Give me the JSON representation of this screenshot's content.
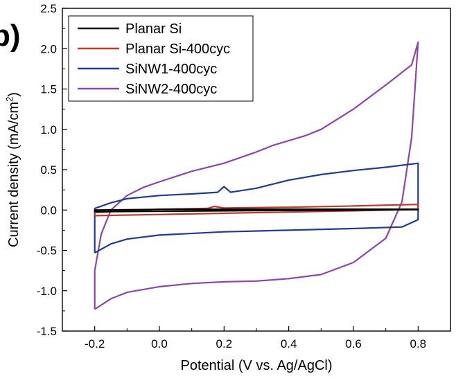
{
  "chart_data": {
    "type": "line",
    "panel_label": "b)",
    "xlabel": "Potential (V vs. Ag/AgCl)",
    "ylabel_main": "Current density (mA/cm",
    "ylabel_sup": "2",
    "ylabel_close": ")",
    "xlim": [
      -0.3,
      0.9
    ],
    "ylim": [
      -1.5,
      2.5
    ],
    "xticks": [
      -0.2,
      0.0,
      0.2,
      0.4,
      0.6,
      0.8
    ],
    "xtick_labels": [
      "-0.2",
      "0.0",
      "0.2",
      "0.4",
      "0.6",
      "0.8"
    ],
    "yticks": [
      -1.5,
      -1.0,
      -0.5,
      0.0,
      0.5,
      1.0,
      1.5,
      2.0,
      2.5
    ],
    "ytick_labels": [
      "-1.5",
      "-1.0",
      "-0.5",
      "0.0",
      "0.5",
      "1.0",
      "1.5",
      "2.0",
      "2.5"
    ],
    "legend_position": "top-left",
    "grid": false,
    "series": [
      {
        "name": "Planar Si",
        "color": "#000000",
        "points": [
          [
            -0.2,
            -0.02
          ],
          [
            0.0,
            -0.015
          ],
          [
            0.2,
            -0.01
          ],
          [
            0.4,
            -0.005
          ],
          [
            0.6,
            0.0
          ],
          [
            0.8,
            0.005
          ],
          [
            0.8,
            0.01
          ],
          [
            0.6,
            0.01
          ],
          [
            0.4,
            0.01
          ],
          [
            0.2,
            0.01
          ],
          [
            0.0,
            0.008
          ],
          [
            -0.2,
            0.0
          ],
          [
            -0.2,
            -0.02
          ]
        ]
      },
      {
        "name": "Planar Si-400cyc",
        "color": "#c0392b",
        "points": [
          [
            -0.2,
            -0.07
          ],
          [
            0.0,
            -0.055
          ],
          [
            0.2,
            -0.04
          ],
          [
            0.4,
            -0.025
          ],
          [
            0.6,
            -0.01
          ],
          [
            0.8,
            0.01
          ],
          [
            0.8,
            0.07
          ],
          [
            0.6,
            0.05
          ],
          [
            0.4,
            0.035
          ],
          [
            0.2,
            0.025
          ],
          [
            0.17,
            0.045
          ],
          [
            0.15,
            0.02
          ],
          [
            0.0,
            0.01
          ],
          [
            -0.2,
            -0.03
          ],
          [
            -0.2,
            -0.07
          ]
        ]
      },
      {
        "name": "SiNW1-400cyc",
        "color": "#1f3a93",
        "points": [
          [
            -0.2,
            -0.53
          ],
          [
            -0.15,
            -0.42
          ],
          [
            -0.1,
            -0.36
          ],
          [
            0.0,
            -0.31
          ],
          [
            0.2,
            -0.27
          ],
          [
            0.4,
            -0.25
          ],
          [
            0.6,
            -0.23
          ],
          [
            0.75,
            -0.21
          ],
          [
            0.8,
            -0.12
          ],
          [
            0.8,
            0.58
          ],
          [
            0.7,
            0.53
          ],
          [
            0.6,
            0.49
          ],
          [
            0.5,
            0.44
          ],
          [
            0.4,
            0.37
          ],
          [
            0.3,
            0.27
          ],
          [
            0.22,
            0.22
          ],
          [
            0.2,
            0.29
          ],
          [
            0.18,
            0.22
          ],
          [
            0.1,
            0.2
          ],
          [
            0.0,
            0.18
          ],
          [
            -0.1,
            0.14
          ],
          [
            -0.15,
            0.09
          ],
          [
            -0.2,
            0.02
          ],
          [
            -0.2,
            -0.53
          ]
        ]
      },
      {
        "name": "SiNW2-400cyc",
        "color": "#8e44ad",
        "points": [
          [
            -0.2,
            -1.23
          ],
          [
            -0.15,
            -1.1
          ],
          [
            -0.1,
            -1.02
          ],
          [
            0.0,
            -0.95
          ],
          [
            0.1,
            -0.91
          ],
          [
            0.2,
            -0.89
          ],
          [
            0.3,
            -0.88
          ],
          [
            0.4,
            -0.85
          ],
          [
            0.5,
            -0.8
          ],
          [
            0.6,
            -0.65
          ],
          [
            0.7,
            -0.35
          ],
          [
            0.75,
            0.1
          ],
          [
            0.78,
            0.9
          ],
          [
            0.8,
            2.08
          ],
          [
            0.78,
            1.8
          ],
          [
            0.7,
            1.55
          ],
          [
            0.6,
            1.25
          ],
          [
            0.5,
            1.0
          ],
          [
            0.45,
            0.92
          ],
          [
            0.4,
            0.86
          ],
          [
            0.35,
            0.8
          ],
          [
            0.3,
            0.72
          ],
          [
            0.2,
            0.58
          ],
          [
            0.1,
            0.48
          ],
          [
            0.0,
            0.35
          ],
          [
            -0.05,
            0.28
          ],
          [
            -0.1,
            0.18
          ],
          [
            -0.15,
            0.0
          ],
          [
            -0.18,
            -0.3
          ],
          [
            -0.2,
            -0.75
          ],
          [
            -0.2,
            -1.23
          ]
        ]
      }
    ]
  }
}
